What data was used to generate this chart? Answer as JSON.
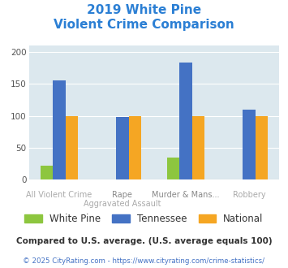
{
  "title_line1": "2019 White Pine",
  "title_line2": "Violent Crime Comparison",
  "white_pine": [
    22,
    0,
    35,
    0
  ],
  "tennessee": [
    156,
    98,
    183,
    110
  ],
  "national": [
    100,
    100,
    100,
    100
  ],
  "wp_color": "#8dc63f",
  "tn_color": "#4472c4",
  "nat_color": "#f5a623",
  "ylim": [
    0,
    210
  ],
  "yticks": [
    0,
    50,
    100,
    150,
    200
  ],
  "bg_color": "#dce8ee",
  "title_color": "#2b7fd4",
  "top_labels": [
    "",
    "Rape",
    "Murder & Mans...",
    ""
  ],
  "bottom_labels": [
    "All Violent Crime",
    "Aggravated Assault",
    "",
    "Robbery"
  ],
  "legend_labels": [
    "White Pine",
    "Tennessee",
    "National"
  ],
  "footnote1": "Compared to U.S. average. (U.S. average equals 100)",
  "footnote2": "© 2025 CityRating.com - https://www.cityrating.com/crime-statistics/",
  "footnote1_color": "#333333",
  "footnote2_color": "#4472c4"
}
